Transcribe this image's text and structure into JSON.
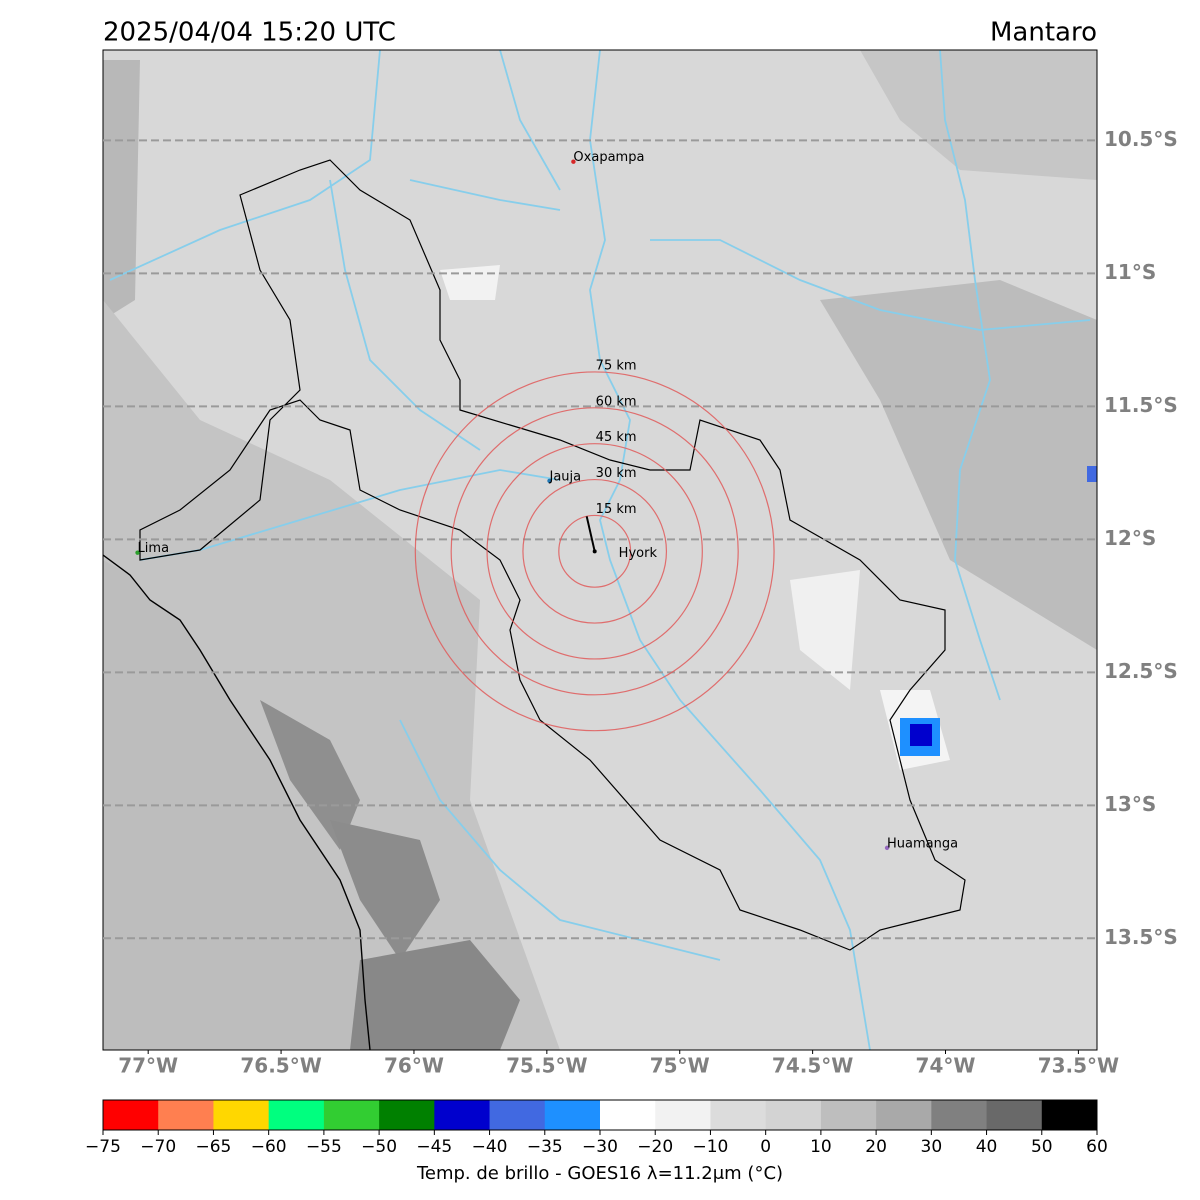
{
  "chart_data": {
    "type": "map",
    "title": "2025/04/04 15:20 UTC",
    "region": "Mantaro",
    "xlim": [
      -77.17,
      -73.43
    ],
    "ylim": [
      -13.92,
      -10.16
    ],
    "xticks": [
      {
        "value": -77,
        "label": "77°W"
      },
      {
        "value": -76.5,
        "label": "76.5°W"
      },
      {
        "value": -76,
        "label": "76°W"
      },
      {
        "value": -75.5,
        "label": "75.5°W"
      },
      {
        "value": -75,
        "label": "75°W"
      },
      {
        "value": -74.5,
        "label": "74.5°W"
      },
      {
        "value": -74,
        "label": "74°W"
      },
      {
        "value": -73.5,
        "label": "73.5°W"
      }
    ],
    "yticks": [
      {
        "value": -10.5,
        "label": "10.5°S"
      },
      {
        "value": -11,
        "label": "11°S"
      },
      {
        "value": -11.5,
        "label": "11.5°S"
      },
      {
        "value": -12,
        "label": "12°S"
      },
      {
        "value": -12.5,
        "label": "12.5°S"
      },
      {
        "value": -13,
        "label": "13°S"
      },
      {
        "value": -13.5,
        "label": "13.5°S"
      }
    ],
    "grid": true,
    "cities": [
      {
        "name": "Oxapampa",
        "lon": -75.4,
        "lat": -10.58,
        "color": "#d62728"
      },
      {
        "name": "Jauja",
        "lon": -75.49,
        "lat": -11.78,
        "color": "#1f77b4"
      },
      {
        "name": "Lima",
        "lon": -77.04,
        "lat": -12.05,
        "color": "#2ca02c"
      },
      {
        "name": "Huamanga",
        "lon": -74.22,
        "lat": -13.16,
        "color": "#9467bd"
      }
    ],
    "radar": {
      "name": "Hyork",
      "lon": -75.32,
      "lat": -12.045,
      "rings": [
        15,
        30,
        45,
        60,
        75
      ],
      "ring_labels": [
        "15 km",
        "30 km",
        "45 km",
        "60 km",
        "75 km"
      ]
    },
    "colorbar": {
      "label": "Temp. de brillo - GOES16 λ=11.2μm (°C)",
      "ticks": [
        {
          "value": -75,
          "label": "−75"
        },
        {
          "value": -70,
          "label": "−70"
        },
        {
          "value": -65,
          "label": "−65"
        },
        {
          "value": -60,
          "label": "−60"
        },
        {
          "value": -55,
          "label": "−55"
        },
        {
          "value": -50,
          "label": "−50"
        },
        {
          "value": -45,
          "label": "−45"
        },
        {
          "value": -40,
          "label": "−40"
        },
        {
          "value": -35,
          "label": "−35"
        },
        {
          "value": -30,
          "label": "−30"
        },
        {
          "value": -20,
          "label": "−20"
        },
        {
          "value": -10,
          "label": "−10"
        },
        0,
        10,
        20,
        30,
        40,
        50,
        60
      ],
      "colors": [
        "#ff0000",
        "#ff7f50",
        "#ffd700",
        "#00ff7f",
        "#32cd32",
        "#008000",
        "#0000cd",
        "#4169e1",
        "#1e90ff",
        "#ffffff",
        "#f2f2f2",
        "#dcdcdc",
        "#d3d3d3",
        "#bebebe",
        "#a9a9a9",
        "#808080",
        "#696969",
        "#000000"
      ]
    }
  }
}
